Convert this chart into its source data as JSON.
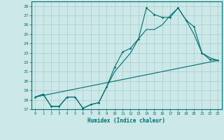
{
  "bg_color": "#cce8e8",
  "line_color": "#007070",
  "grid_color": "#aacccc",
  "xlabel": "Humidex (Indice chaleur)",
  "xlim": [
    -0.5,
    23.5
  ],
  "ylim": [
    17,
    28.5
  ],
  "yticks": [
    17,
    18,
    19,
    20,
    21,
    22,
    23,
    24,
    25,
    26,
    27,
    28
  ],
  "xticks": [
    0,
    1,
    2,
    3,
    4,
    5,
    6,
    7,
    8,
    9,
    10,
    11,
    12,
    13,
    14,
    15,
    16,
    17,
    18,
    19,
    20,
    21,
    22,
    23
  ],
  "line1_x": [
    0,
    1,
    2,
    3,
    4,
    5,
    6,
    7,
    8,
    9,
    10,
    11,
    12,
    13,
    14,
    15,
    16,
    17,
    18,
    19,
    20,
    21,
    22,
    23
  ],
  "line1_y": [
    18.3,
    18.6,
    17.3,
    17.3,
    18.3,
    18.3,
    17.1,
    17.5,
    17.7,
    19.4,
    21.5,
    23.1,
    23.5,
    24.5,
    27.8,
    27.1,
    26.8,
    26.8,
    27.8,
    26.5,
    25.8,
    23.0,
    22.3,
    22.2
  ],
  "line2_x": [
    0,
    1,
    2,
    3,
    4,
    5,
    6,
    7,
    8,
    9,
    10,
    11,
    12,
    13,
    14,
    15,
    16,
    17,
    18,
    19,
    20,
    21,
    22,
    23
  ],
  "line2_y": [
    18.3,
    18.6,
    17.3,
    17.3,
    18.3,
    18.3,
    17.1,
    17.5,
    17.7,
    19.4,
    21.0,
    22.0,
    23.0,
    24.5,
    25.5,
    25.5,
    26.0,
    27.0,
    27.8,
    26.5,
    25.0,
    23.0,
    22.5,
    22.2
  ],
  "line3_x": [
    0,
    23
  ],
  "line3_y": [
    18.3,
    22.2
  ]
}
